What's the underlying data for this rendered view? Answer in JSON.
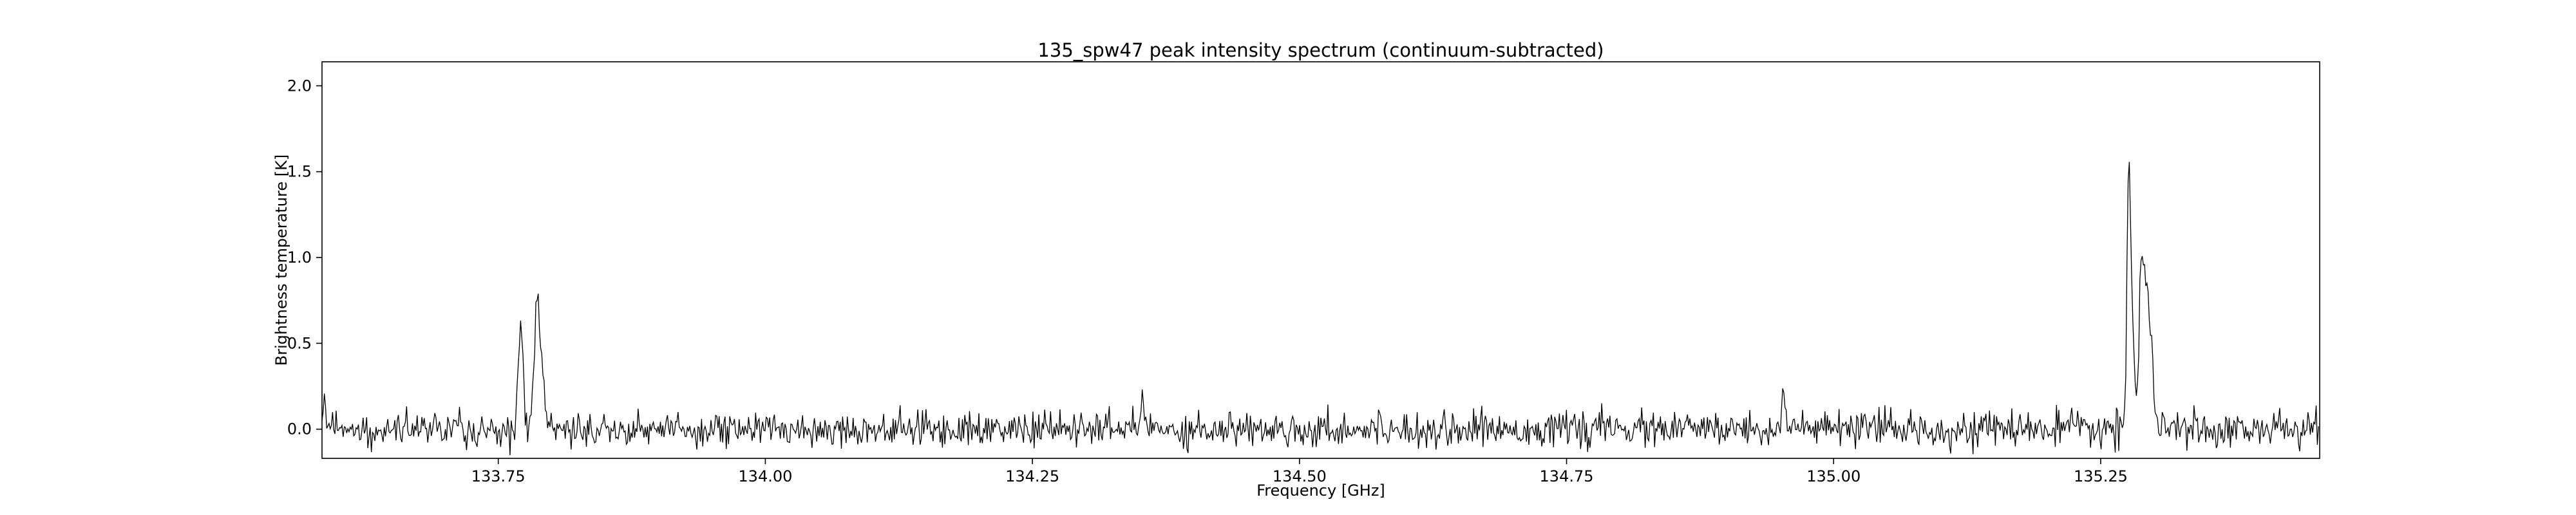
{
  "chart_data": {
    "type": "line",
    "title": "135_spw47 peak intensity spectrum (continuum-subtracted)",
    "xlabel": "Frequency [GHz]",
    "ylabel": "Brightness temperature [K]",
    "xlim": [
      133.585,
      135.455
    ],
    "ylim": [
      -0.17,
      2.14
    ],
    "xticks": [
      133.75,
      134.0,
      134.25,
      134.5,
      134.75,
      135.0,
      135.25
    ],
    "xtick_labels": [
      "133.75",
      "134.00",
      "134.25",
      "134.50",
      "134.75",
      "135.00",
      "135.25"
    ],
    "yticks": [
      0.0,
      0.5,
      1.0,
      1.5,
      2.0
    ],
    "ytick_labels": [
      "0.0",
      "0.5",
      "1.0",
      "1.5",
      "2.0"
    ],
    "grid": false,
    "line_color": "#000000",
    "series": [
      {
        "noise_sigma": 0.05,
        "channel_spacing": 0.0011,
        "features": [
          {
            "center": 133.587,
            "peak": 0.18,
            "width": 0.0015
          },
          {
            "center": 133.771,
            "peak": 0.61,
            "width": 0.0022
          },
          {
            "center": 133.786,
            "peak": 0.8,
            "width": 0.0022
          },
          {
            "center": 133.791,
            "peak": 0.34,
            "width": 0.002
          },
          {
            "center": 134.353,
            "peak": 0.22,
            "width": 0.0015
          },
          {
            "center": 134.953,
            "peak": 0.24,
            "width": 0.0018
          },
          {
            "center": 135.276,
            "peak": 1.26,
            "width": 0.0016
          },
          {
            "center": 135.279,
            "peak": 0.7,
            "width": 0.0022
          },
          {
            "center": 135.288,
            "peak": 0.85,
            "width": 0.0022
          },
          {
            "center": 135.293,
            "peak": 0.77,
            "width": 0.0025
          },
          {
            "center": 135.298,
            "peak": 0.35,
            "width": 0.002
          }
        ]
      }
    ]
  }
}
